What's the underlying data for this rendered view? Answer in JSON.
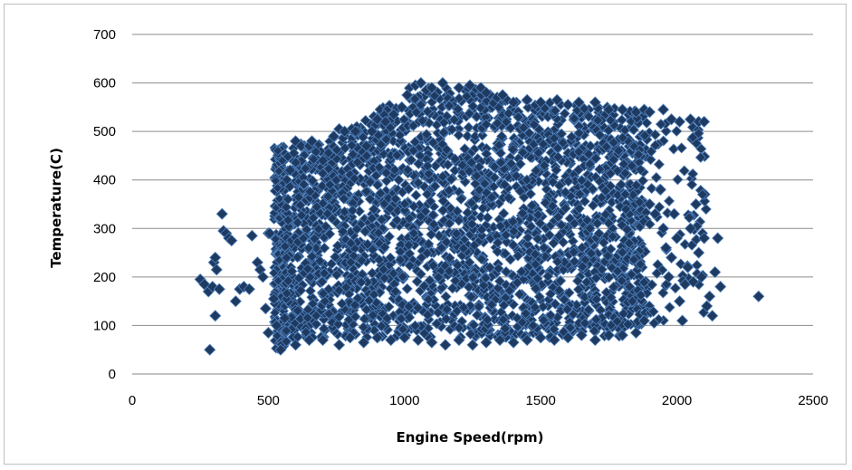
{
  "chart_data": {
    "type": "scatter",
    "title": "",
    "xlabel": "Engine Speed(rpm)",
    "ylabel": "Temperature(C)",
    "xlim": [
      0,
      2500
    ],
    "ylim": [
      0,
      700
    ],
    "x_ticks": [
      0,
      500,
      1000,
      1500,
      2000,
      2500
    ],
    "y_ticks": [
      0,
      100,
      200,
      300,
      400,
      500,
      600,
      700
    ],
    "x_tick_labels": [
      "0",
      "500",
      "1000",
      "1500",
      "2000",
      "2500"
    ],
    "y_tick_labels": [
      "0",
      "100",
      "200",
      "300",
      "400",
      "500",
      "600",
      "700"
    ],
    "grid": "horizontal",
    "legend": "none",
    "marker": "diamond",
    "marker_color": "#1F3A60",
    "marker_edge_color": "#4F81BD",
    "series": [
      {
        "values": [
          [
            250,
            195
          ],
          [
            265,
            185
          ],
          [
            280,
            170
          ],
          [
            285,
            50
          ],
          [
            295,
            180
          ],
          [
            300,
            230
          ],
          [
            305,
            240
          ],
          [
            305,
            120
          ],
          [
            310,
            215
          ],
          [
            320,
            175
          ],
          [
            330,
            330
          ],
          [
            335,
            295
          ],
          [
            345,
            290
          ],
          [
            355,
            280
          ],
          [
            365,
            275
          ],
          [
            380,
            150
          ],
          [
            395,
            175
          ],
          [
            410,
            180
          ],
          [
            430,
            175
          ],
          [
            440,
            285
          ],
          [
            460,
            230
          ],
          [
            470,
            215
          ],
          [
            480,
            200
          ],
          [
            490,
            135
          ],
          [
            500,
            85
          ],
          [
            500,
            290
          ],
          [
            505,
            290
          ],
          [
            520,
            155
          ],
          [
            530,
            100
          ],
          [
            545,
            50
          ],
          [
            560,
            115
          ],
          [
            580,
            420
          ],
          [
            600,
            480
          ],
          [
            620,
            470
          ],
          [
            650,
            470
          ],
          [
            660,
            480
          ],
          [
            700,
            440
          ],
          [
            740,
            490
          ],
          [
            760,
            505
          ],
          [
            780,
            500
          ],
          [
            820,
            500
          ],
          [
            860,
            470
          ],
          [
            880,
            500
          ],
          [
            900,
            525
          ],
          [
            930,
            520
          ],
          [
            960,
            535
          ],
          [
            990,
            550
          ],
          [
            1010,
            575
          ],
          [
            1040,
            595
          ],
          [
            1060,
            600
          ],
          [
            1080,
            585
          ],
          [
            1100,
            590
          ],
          [
            1140,
            600
          ],
          [
            1200,
            590
          ],
          [
            1240,
            595
          ],
          [
            1280,
            590
          ],
          [
            1300,
            580
          ],
          [
            1340,
            570
          ],
          [
            1360,
            575
          ],
          [
            1400,
            560
          ],
          [
            1450,
            565
          ],
          [
            1500,
            560
          ],
          [
            1560,
            565
          ],
          [
            1600,
            555
          ],
          [
            1640,
            560
          ],
          [
            1700,
            560
          ],
          [
            1750,
            545
          ],
          [
            1800,
            545
          ],
          [
            1850,
            540
          ],
          [
            1880,
            545
          ],
          [
            1900,
            540
          ],
          [
            1950,
            545
          ],
          [
            1980,
            525
          ],
          [
            2010,
            520
          ],
          [
            2050,
            525
          ],
          [
            2080,
            520
          ],
          [
            2100,
            520
          ],
          [
            600,
            60
          ],
          [
            650,
            70
          ],
          [
            700,
            70
          ],
          [
            760,
            60
          ],
          [
            800,
            75
          ],
          [
            850,
            65
          ],
          [
            900,
            75
          ],
          [
            950,
            70
          ],
          [
            1000,
            75
          ],
          [
            1050,
            70
          ],
          [
            1100,
            65
          ],
          [
            1150,
            60
          ],
          [
            1200,
            70
          ],
          [
            1250,
            60
          ],
          [
            1300,
            65
          ],
          [
            1350,
            70
          ],
          [
            1400,
            65
          ],
          [
            1450,
            70
          ],
          [
            1500,
            75
          ],
          [
            1550,
            70
          ],
          [
            1600,
            75
          ],
          [
            1650,
            80
          ],
          [
            1700,
            70
          ],
          [
            1750,
            80
          ],
          [
            1800,
            80
          ],
          [
            1850,
            85
          ],
          [
            1880,
            110
          ],
          [
            1900,
            350
          ],
          [
            1920,
            330
          ],
          [
            1940,
            380
          ],
          [
            1950,
            300
          ],
          [
            1960,
            260
          ],
          [
            1970,
            200
          ],
          [
            1980,
            240
          ],
          [
            1990,
            330
          ],
          [
            2000,
            280
          ],
          [
            2010,
            150
          ],
          [
            2020,
            110
          ],
          [
            2030,
            185
          ],
          [
            2040,
            220
          ],
          [
            2050,
            300
          ],
          [
            2060,
            190
          ],
          [
            2070,
            350
          ],
          [
            2080,
            250
          ],
          [
            2090,
            200
          ],
          [
            2100,
            280
          ],
          [
            2110,
            140
          ],
          [
            2120,
            160
          ],
          [
            2130,
            120
          ],
          [
            2140,
            210
          ],
          [
            2150,
            280
          ],
          [
            2160,
            180
          ],
          [
            2300,
            160
          ]
        ]
      }
    ]
  }
}
